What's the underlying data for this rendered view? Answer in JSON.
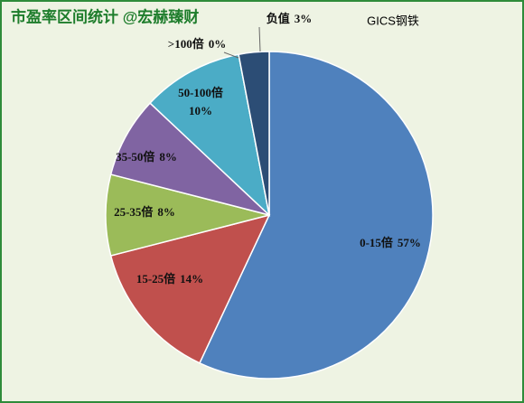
{
  "chart_data": {
    "type": "pie",
    "title": "市盈率区间统计 @宏赫臻财",
    "subtitle": "GICS钢铁",
    "categories": [
      "0-15倍",
      "15-25倍",
      "25-35倍",
      "35-50倍",
      "50-100倍",
      ">100倍",
      "负值"
    ],
    "values": [
      57,
      14,
      8,
      8,
      10,
      0,
      3
    ],
    "value_labels": [
      "57%",
      "14%",
      "8%",
      "8%",
      "10%",
      "0%",
      "3%"
    ],
    "colors": [
      "#4f81bd",
      "#c0504d",
      "#9bbb59",
      "#8064a2",
      "#4bacc6",
      "#f79646",
      "#2c4d75"
    ]
  }
}
